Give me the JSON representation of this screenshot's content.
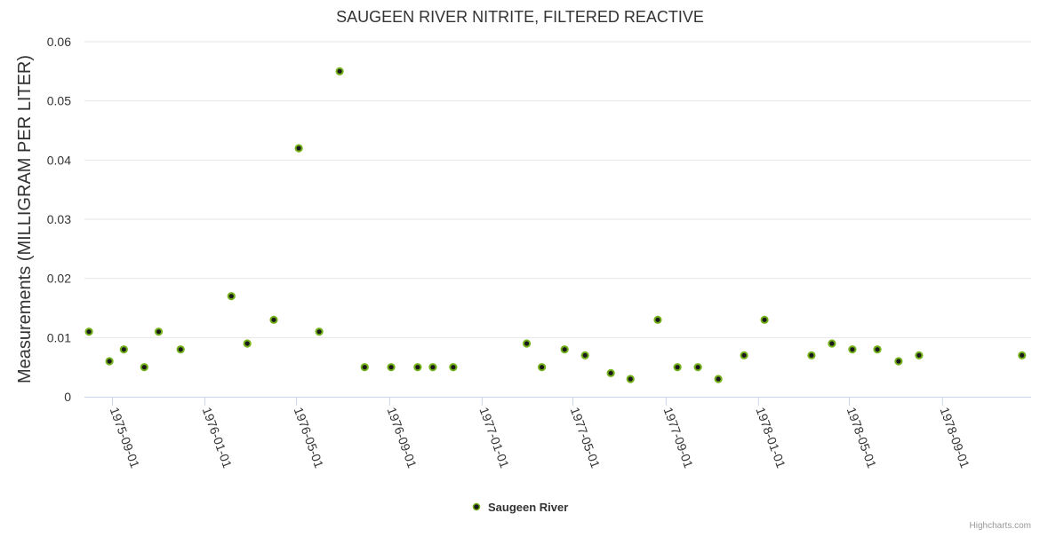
{
  "chart_data": {
    "type": "scatter",
    "title": "SAUGEEN RIVER NITRITE, FILTERED REACTIVE",
    "ylabel": "Measurements (MILLIGRAM PER LITER)",
    "xlabel": "",
    "ylim": [
      0,
      0.06
    ],
    "y_ticks": [
      "0",
      "0.01",
      "0.02",
      "0.03",
      "0.04",
      "0.05",
      "0.06"
    ],
    "x_ticks": [
      "1975-09-01",
      "1976-01-01",
      "1976-05-01",
      "1976-09-01",
      "1977-01-01",
      "1977-05-01",
      "1977-09-01",
      "1978-01-01",
      "1978-05-01",
      "1978-09-01"
    ],
    "x_range": [
      "1975-07-26",
      "1978-12-27"
    ],
    "grid": true,
    "legend_position": "bottom-center",
    "series": [
      {
        "name": "Saugeen River",
        "color": "#75b21b",
        "points": [
          {
            "x": "1975-08-01",
            "y": 0.011
          },
          {
            "x": "1975-08-28",
            "y": 0.006
          },
          {
            "x": "1975-09-16",
            "y": 0.008
          },
          {
            "x": "1975-10-13",
            "y": 0.005
          },
          {
            "x": "1975-11-01",
            "y": 0.011
          },
          {
            "x": "1975-11-30",
            "y": 0.008
          },
          {
            "x": "1976-02-05",
            "y": 0.017
          },
          {
            "x": "1976-02-26",
            "y": 0.009
          },
          {
            "x": "1976-04-01",
            "y": 0.013
          },
          {
            "x": "1976-05-04",
            "y": 0.042
          },
          {
            "x": "1976-05-31",
            "y": 0.011
          },
          {
            "x": "1976-06-27",
            "y": 0.055
          },
          {
            "x": "1976-07-30",
            "y": 0.005
          },
          {
            "x": "1976-09-03",
            "y": 0.005
          },
          {
            "x": "1976-10-08",
            "y": 0.005
          },
          {
            "x": "1976-10-28",
            "y": 0.005
          },
          {
            "x": "1976-11-24",
            "y": 0.005
          },
          {
            "x": "1977-03-01",
            "y": 0.009
          },
          {
            "x": "1977-03-21",
            "y": 0.005
          },
          {
            "x": "1977-04-20",
            "y": 0.008
          },
          {
            "x": "1977-05-17",
            "y": 0.007
          },
          {
            "x": "1977-06-20",
            "y": 0.004
          },
          {
            "x": "1977-07-16",
            "y": 0.003
          },
          {
            "x": "1977-08-21",
            "y": 0.013
          },
          {
            "x": "1977-09-16",
            "y": 0.005
          },
          {
            "x": "1977-10-13",
            "y": 0.005
          },
          {
            "x": "1977-11-09",
            "y": 0.003
          },
          {
            "x": "1977-12-13",
            "y": 0.007
          },
          {
            "x": "1978-01-09",
            "y": 0.013
          },
          {
            "x": "1978-03-12",
            "y": 0.007
          },
          {
            "x": "1978-04-08",
            "y": 0.009
          },
          {
            "x": "1978-05-05",
            "y": 0.008
          },
          {
            "x": "1978-06-07",
            "y": 0.008
          },
          {
            "x": "1978-07-05",
            "y": 0.006
          },
          {
            "x": "1978-08-01",
            "y": 0.007
          },
          {
            "x": "1978-12-15",
            "y": 0.007
          }
        ]
      }
    ]
  },
  "credits": "Highcharts.com"
}
